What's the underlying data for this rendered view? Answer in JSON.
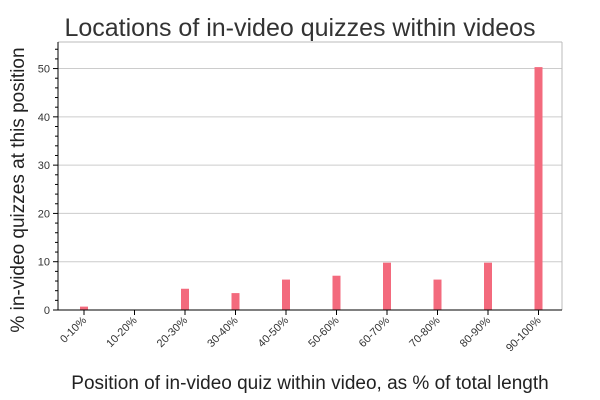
{
  "chart_data": {
    "type": "bar",
    "title": "Locations of in-video quizzes within videos",
    "xlabel": "Position of in-video quiz within video, as % of total length",
    "ylabel": "% in-video quizzes at this position",
    "categories": [
      "0-10%",
      "10-20%",
      "20-30%",
      "30-40%",
      "40-50%",
      "50-60%",
      "60-70%",
      "70-80%",
      "80-90%",
      "90-100%"
    ],
    "values": [
      0.7,
      0,
      4.4,
      3.5,
      6.3,
      7.1,
      9.8,
      6.3,
      9.8,
      50.3
    ],
    "ylim": [
      0,
      55.5
    ],
    "yticks": [
      0,
      10,
      20,
      30,
      40,
      50
    ],
    "grid": true,
    "legend": "none",
    "bar_color": "#f36a7d"
  }
}
